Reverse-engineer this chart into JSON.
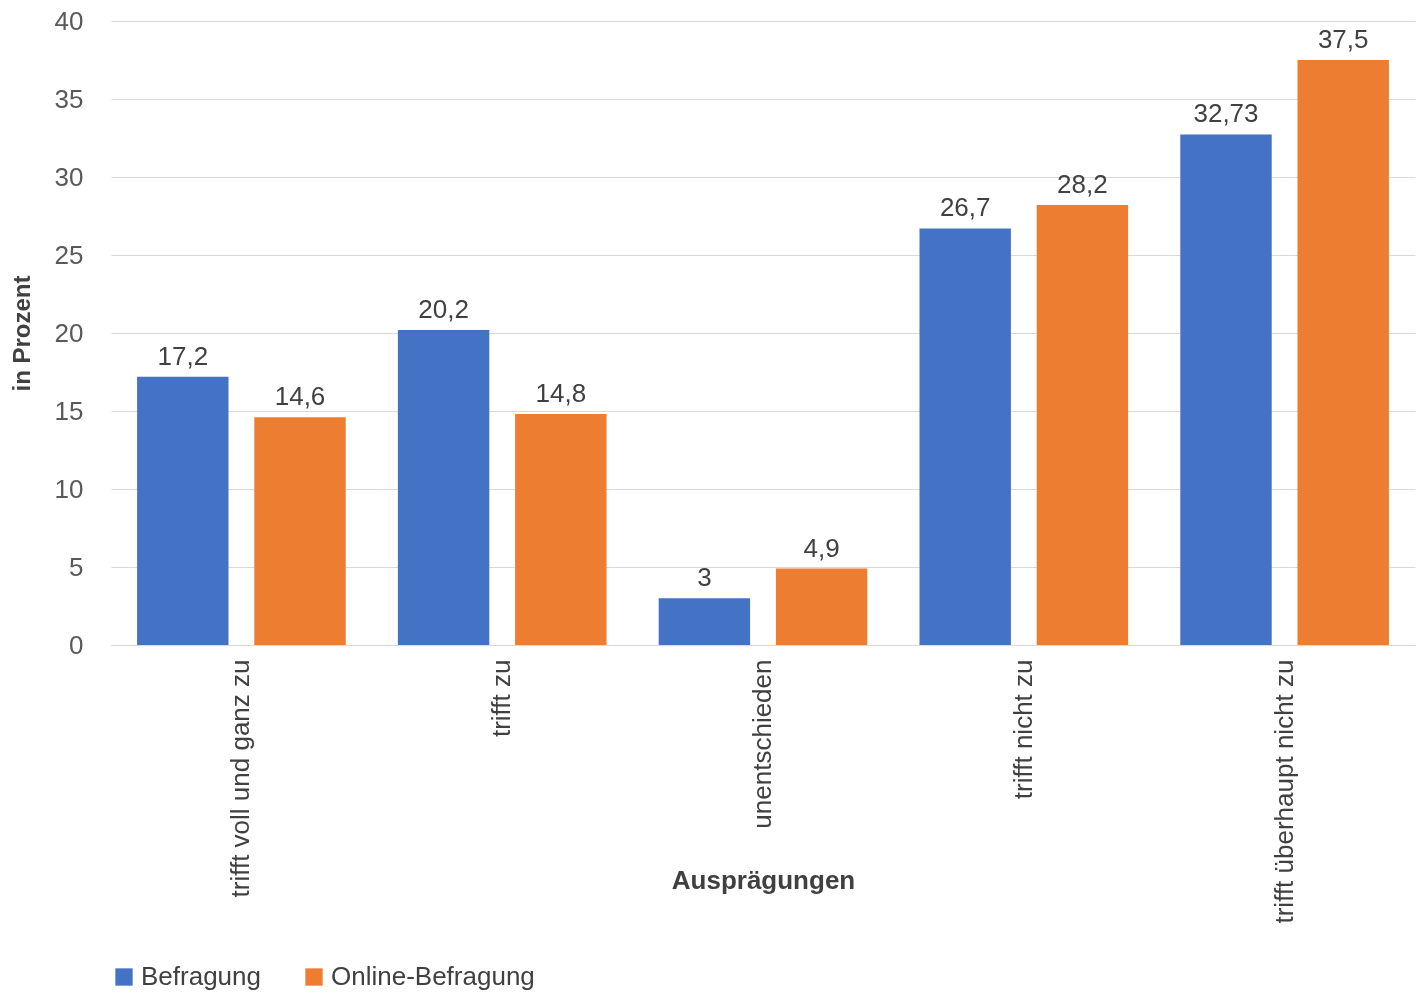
{
  "chart_data": {
    "type": "bar",
    "xlabel": "Ausprägungen",
    "ylabel": "in Prozent",
    "categories": [
      "trifft voll und ganz zu",
      "trifft zu",
      "unentschieden",
      "trifft nicht zu",
      "trifft überhaupt nicht zu"
    ],
    "series": [
      {
        "name": "Befragung",
        "color": "#4472c4",
        "values": [
          17.2,
          20.2,
          3,
          26.7,
          32.73
        ],
        "value_labels": [
          "17,2",
          "20,2",
          "3",
          "26,7",
          "32,73"
        ]
      },
      {
        "name": "Online-Befragung",
        "color": "#ed7d31",
        "values": [
          14.6,
          14.8,
          4.9,
          28.2,
          37.5
        ],
        "value_labels": [
          "14,6",
          "14,8",
          "4,9",
          "28,2",
          "37,5"
        ]
      }
    ],
    "ylim": [
      0,
      40
    ],
    "yticks": [
      0,
      5,
      10,
      15,
      20,
      25,
      30,
      35,
      40
    ],
    "grid": "y",
    "legend": "bottom"
  }
}
